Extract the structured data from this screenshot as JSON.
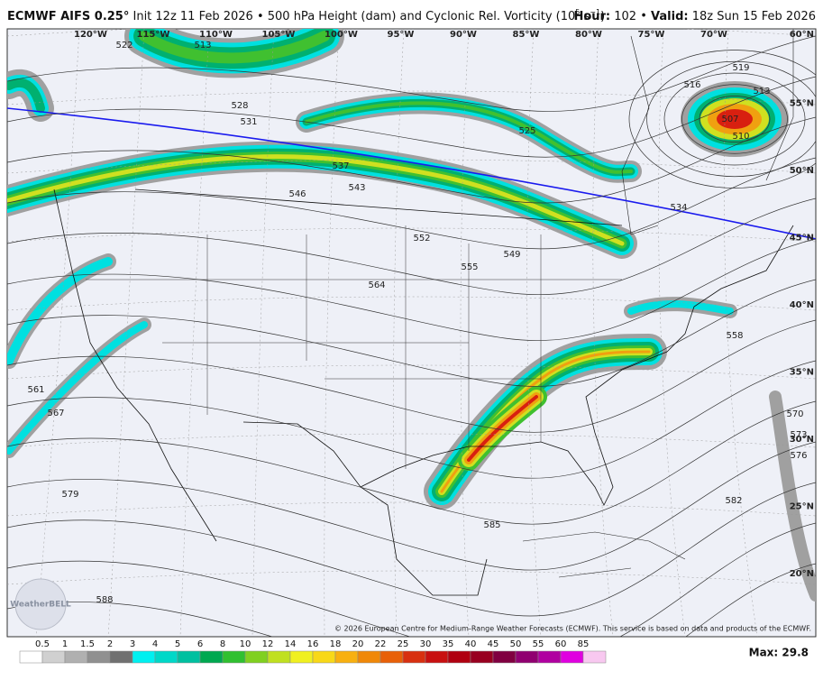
{
  "header": {
    "model": "ECMWF AIFS 0.25°",
    "title": "Init 12z 11 Feb 2026 • 500 hPa Height (dam) and Cyclonic Rel. Vorticity (10",
    "exp": "5",
    "unit": " s",
    "unit_exp": "−1",
    "close": ")",
    "hour_label": "Hour:",
    "hour": "102",
    "valid_label": "Valid:",
    "valid": "18z Sun 15 Feb 2026"
  },
  "map": {
    "lon_labels": [
      "120°W",
      "115°W",
      "110°W",
      "105°W",
      "100°W",
      "95°W",
      "90°W",
      "85°W",
      "80°W",
      "75°W",
      "70°W"
    ],
    "lat_labels": [
      "60°N",
      "55°N",
      "50°N",
      "45°N",
      "40°N",
      "35°N",
      "30°N",
      "25°N",
      "20°N"
    ],
    "contour_labels": [
      "513",
      "522",
      "519",
      "516",
      "513",
      "507",
      "510",
      "528",
      "531",
      "537",
      "543",
      "546",
      "552",
      "555",
      "549",
      "525",
      "534",
      "564",
      "558",
      "561",
      "567",
      "570",
      "573",
      "576",
      "579",
      "582",
      "585",
      "588"
    ],
    "copyright": "© 2026 European Centre for Medium-Range Weather Forecasts (ECMWF). This service is based on data and products of the ECMWF.",
    "logo": "WeatherBELL"
  },
  "colorbar": {
    "levels": [
      0.5,
      1,
      1.5,
      2,
      3,
      4,
      5,
      6,
      8,
      10,
      12,
      14,
      16,
      18,
      20,
      22,
      25,
      30,
      35,
      40,
      45,
      50,
      55,
      60,
      85
    ],
    "colors": [
      "#ffffff",
      "#d0d0d0",
      "#b0b0b0",
      "#909090",
      "#707070",
      "#00f0f0",
      "#00d8c8",
      "#00c0a0",
      "#00a850",
      "#30c030",
      "#80d020",
      "#c0e020",
      "#f0f020",
      "#f8d818",
      "#f8b010",
      "#f08808",
      "#e86008",
      "#d83010",
      "#c81010",
      "#b00010",
      "#980020",
      "#800040",
      "#900070",
      "#b000a0",
      "#e000e0",
      "#f8c8f0"
    ],
    "max_label": "Max: 29.8"
  }
}
